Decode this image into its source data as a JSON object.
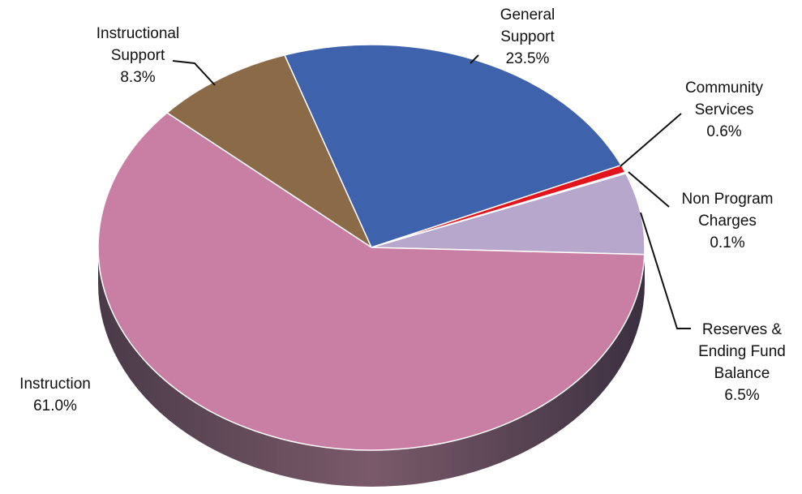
{
  "chart_data": {
    "type": "pie",
    "categories": [
      "Reserves & Ending Fund Balance",
      "Non Program Charges",
      "Community Services",
      "General Support",
      "Instructional Support",
      "Instruction"
    ],
    "values": [
      6.5,
      0.1,
      0.6,
      23.5,
      8.3,
      61.0
    ],
    "value_labels": [
      "6.5%",
      "0.1%",
      "0.6%",
      "23.5%",
      "8.3%",
      "61.0%"
    ],
    "colors": [
      "#b7a7cc",
      "#f3e3a0",
      "#e2141c",
      "#3e62ab",
      "#8b6a48",
      "#c97fa3"
    ]
  }
}
